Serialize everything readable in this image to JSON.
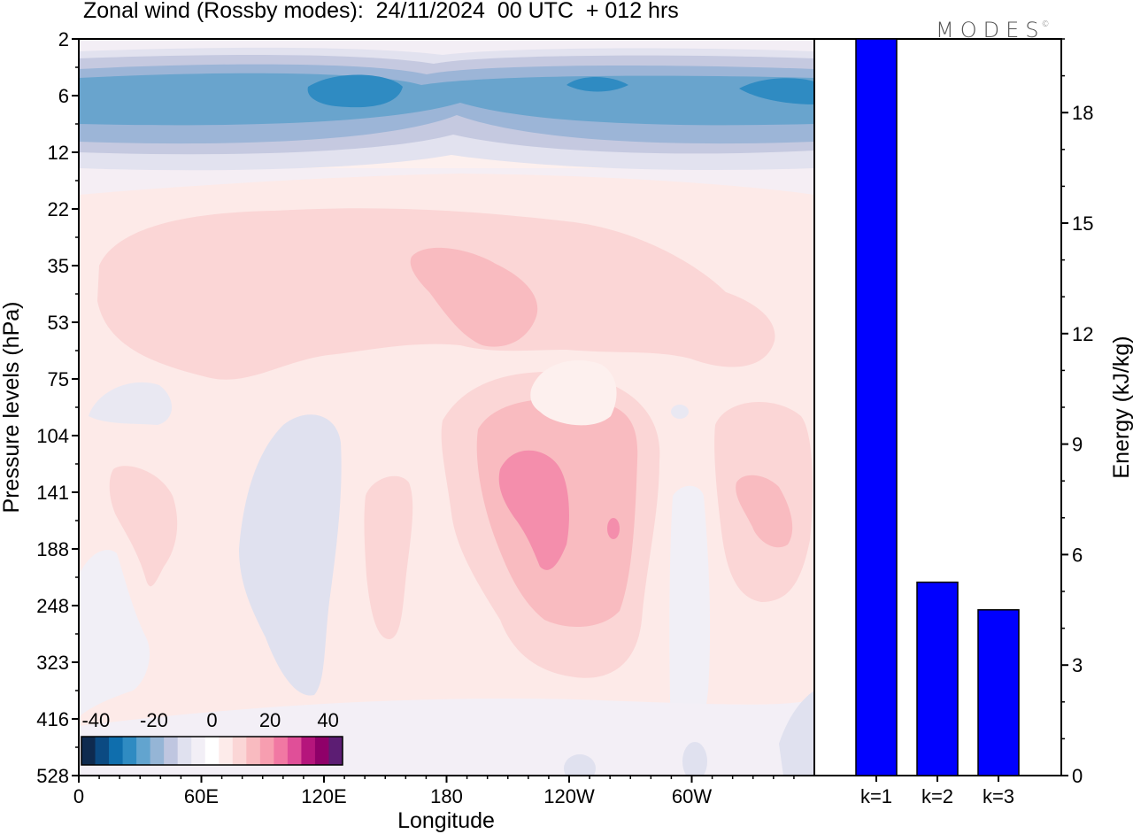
{
  "title": "Zonal wind (Rossby modes):  24/11/2024  00 UTC  + 012 hrs",
  "brand": "MODES",
  "brand_mark": "©",
  "colors": {
    "bar_fill": "#0000ff",
    "bar_stroke": "#000000",
    "background": "#ffffff",
    "colorbar": [
      "#0e2a4f",
      "#0b4a82",
      "#0f6ead",
      "#2f8bc2",
      "#62a4cf",
      "#95b5d6",
      "#bfc6e0",
      "#e0e1ef",
      "#f2eff6",
      "#ffffff",
      "#fdebea",
      "#fbd6d6",
      "#f9bbc0",
      "#f79eb0",
      "#f178a3",
      "#e04f98",
      "#b5157c",
      "#8f0069",
      "#5c1d73"
    ]
  },
  "chart_data": [
    {
      "type": "heatmap",
      "title": "Zonal wind (Rossby modes):  24/11/2024  00 UTC  + 012 hrs",
      "xlabel": "Longitude",
      "ylabel": "Pressure levels (hPa)",
      "x_ticks": [
        "0",
        "60E",
        "120E",
        "180",
        "120W",
        "60W"
      ],
      "x_tick_lon": [
        0,
        60,
        120,
        180,
        240,
        300
      ],
      "xlim": [
        0,
        360
      ],
      "y_ticks": [
        "2",
        "6",
        "12",
        "22",
        "35",
        "53",
        "75",
        "104",
        "141",
        "188",
        "248",
        "323",
        "416",
        "528"
      ],
      "colorbar": {
        "tick_labels": [
          "-40",
          "-20",
          "0",
          "20",
          "40"
        ],
        "tick_values": [
          -40,
          -20,
          0,
          20,
          40
        ],
        "range": [
          -45,
          45
        ]
      },
      "features": [
        {
          "desc": "easterly jet",
          "lon_range": [
            0,
            360
          ],
          "level_range": [
            2,
            12
          ],
          "min_value": -30
        },
        {
          "desc": "westerly maximum",
          "lon_range": [
            200,
            240
          ],
          "level_range": [
            104,
            248
          ],
          "max_value": 20
        },
        {
          "desc": "weak easterlies",
          "lon_range": [
            80,
            130
          ],
          "level_range": [
            104,
            416
          ],
          "min_value": -5
        }
      ]
    },
    {
      "type": "bar",
      "categories": [
        "k=1",
        "k=2",
        "k=3"
      ],
      "values": [
        20.0,
        5.25,
        4.5
      ],
      "ylabel": "Energy (kJ/kg)",
      "y_ticks": [
        0,
        3,
        6,
        9,
        12,
        15,
        18
      ],
      "ylim": [
        0,
        20
      ]
    }
  ]
}
